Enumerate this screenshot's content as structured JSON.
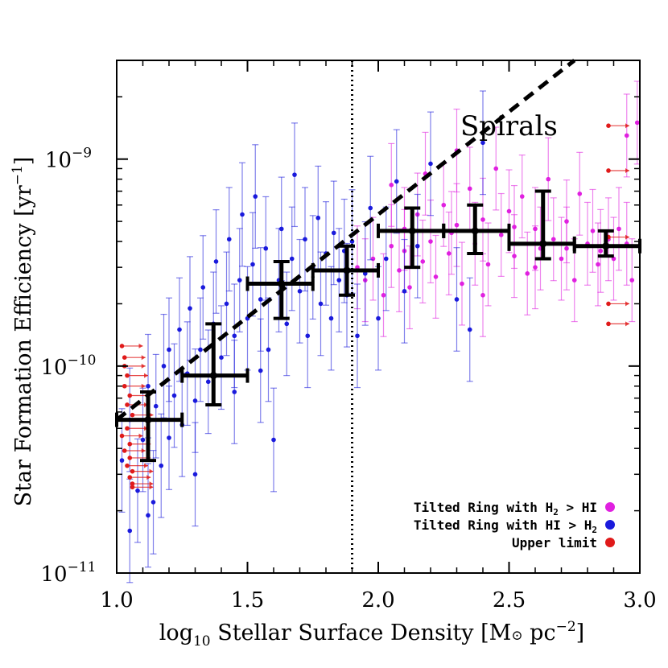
{
  "chart_data": {
    "type": "scatter",
    "xlabel": "log10 Stellar Surface Density [M⊙ pc⁻²]",
    "xlabel_parts": {
      "a": "log",
      "b": "10",
      "c": " Stellar Surface Density [M",
      "d": "⊙",
      "e": " pc",
      "f": "−2",
      "g": "]"
    },
    "ylabel": "Star Formation Efficiency [yr⁻¹]",
    "ylabel_parts": {
      "a": "Star Formation Efficiency [yr",
      "b": "−1",
      "c": "]"
    },
    "xlim": [
      1.0,
      3.0
    ],
    "ylim": [
      1e-11,
      3e-09
    ],
    "yscale": "log",
    "xticks": [
      "1.0",
      "1.5",
      "2.0",
      "2.5",
      "3.0"
    ],
    "yticks": [
      {
        "value": 1e-11,
        "base": "10",
        "exp": "−11"
      },
      {
        "value": 1e-10,
        "base": "10",
        "exp": "−10"
      },
      {
        "value": 1e-09,
        "base": "10",
        "exp": "−9"
      }
    ],
    "grid": false,
    "legend_position": "bottom-right",
    "annotation": "Spirals",
    "threshold_x": 1.9,
    "series": [
      {
        "name": "Tilted Ring with H2 > HI",
        "color": "#e020e0",
        "points": [
          [
            1.92,
            3e-10
          ],
          [
            1.95,
            2.6e-10
          ],
          [
            1.98,
            3.3e-10
          ],
          [
            2.02,
            2.2e-10
          ],
          [
            2.05,
            3.8e-10
          ],
          [
            2.08,
            2.9e-10
          ],
          [
            2.1,
            4.6e-10
          ],
          [
            2.12,
            2.4e-10
          ],
          [
            2.15,
            5.4e-10
          ],
          [
            2.17,
            3.2e-10
          ],
          [
            2.2,
            4e-10
          ],
          [
            2.22,
            2.7e-10
          ],
          [
            2.25,
            6e-10
          ],
          [
            2.27,
            3.5e-10
          ],
          [
            2.3,
            4.8e-10
          ],
          [
            2.32,
            2.5e-10
          ],
          [
            2.35,
            7.2e-10
          ],
          [
            2.37,
            3.9e-10
          ],
          [
            2.4,
            5.1e-10
          ],
          [
            2.42,
            3.1e-10
          ],
          [
            2.45,
            9e-10
          ],
          [
            2.47,
            4.3e-10
          ],
          [
            2.5,
            5.6e-10
          ],
          [
            2.52,
            3.4e-10
          ],
          [
            2.55,
            6.6e-10
          ],
          [
            2.57,
            2.8e-10
          ],
          [
            2.6,
            4.6e-10
          ],
          [
            2.62,
            3.7e-10
          ],
          [
            2.65,
            8e-10
          ],
          [
            2.67,
            4.1e-10
          ],
          [
            2.7,
            3.3e-10
          ],
          [
            2.72,
            5e-10
          ],
          [
            2.75,
            2.6e-10
          ],
          [
            2.77,
            6.8e-10
          ],
          [
            2.8,
            3.9e-10
          ],
          [
            2.82,
            4.5e-10
          ],
          [
            2.85,
            3.6e-10
          ],
          [
            2.88,
            4.1e-10
          ],
          [
            2.9,
            3.3e-10
          ],
          [
            2.92,
            4.6e-10
          ],
          [
            2.95,
            3.9e-10
          ],
          [
            2.97,
            2.6e-10
          ],
          [
            2.99,
            1.5e-09
          ],
          [
            2.95,
            1.3e-09
          ],
          [
            2.3,
            1.1e-09
          ],
          [
            2.18,
            8.5e-10
          ],
          [
            2.05,
            7.5e-10
          ],
          [
            2.4,
            2.2e-10
          ],
          [
            2.6,
            3e-10
          ],
          [
            2.1,
            3.6e-10
          ],
          [
            2.28,
            4.4e-10
          ],
          [
            2.52,
            4.7e-10
          ],
          [
            2.72,
            3.7e-10
          ],
          [
            2.84,
            3.1e-10
          ]
        ],
        "err_dex": 0.2
      },
      {
        "name": "Tilted Ring with HI > H2",
        "color": "#1a1adc",
        "points": [
          [
            1.02,
            3.5e-11
          ],
          [
            1.05,
            1.6e-11
          ],
          [
            1.05,
            5.5e-11
          ],
          [
            1.08,
            2.5e-11
          ],
          [
            1.1,
            4.4e-11
          ],
          [
            1.12,
            8e-11
          ],
          [
            1.14,
            2.2e-11
          ],
          [
            1.15,
            6.4e-11
          ],
          [
            1.17,
            3.3e-11
          ],
          [
            1.18,
            1e-10
          ],
          [
            1.2,
            4.5e-11
          ],
          [
            1.22,
            7.2e-11
          ],
          [
            1.24,
            1.5e-10
          ],
          [
            1.25,
            5.2e-11
          ],
          [
            1.27,
            9.2e-11
          ],
          [
            1.28,
            1.9e-10
          ],
          [
            1.3,
            6.8e-11
          ],
          [
            1.32,
            1.2e-10
          ],
          [
            1.33,
            2.4e-10
          ],
          [
            1.35,
            8.4e-11
          ],
          [
            1.37,
            1.6e-10
          ],
          [
            1.38,
            3.2e-10
          ],
          [
            1.4,
            1.1e-10
          ],
          [
            1.42,
            2e-10
          ],
          [
            1.43,
            4.1e-10
          ],
          [
            1.45,
            1.4e-10
          ],
          [
            1.47,
            2.6e-10
          ],
          [
            1.48,
            5.4e-10
          ],
          [
            1.5,
            1.7e-10
          ],
          [
            1.52,
            3.1e-10
          ],
          [
            1.53,
            6.6e-10
          ],
          [
            1.55,
            2.1e-10
          ],
          [
            1.57,
            3.7e-10
          ],
          [
            1.58,
            1.2e-10
          ],
          [
            1.6,
            4.4e-11
          ],
          [
            1.62,
            2.6e-10
          ],
          [
            1.63,
            4.6e-10
          ],
          [
            1.65,
            1.6e-10
          ],
          [
            1.67,
            3.3e-10
          ],
          [
            1.68,
            8.4e-10
          ],
          [
            1.7,
            2.3e-10
          ],
          [
            1.72,
            4.1e-10
          ],
          [
            1.73,
            1.4e-10
          ],
          [
            1.75,
            3e-10
          ],
          [
            1.77,
            5.2e-10
          ],
          [
            1.78,
            2e-10
          ],
          [
            1.8,
            3.5e-10
          ],
          [
            1.82,
            1.7e-10
          ],
          [
            1.83,
            4.4e-10
          ],
          [
            1.85,
            2.6e-10
          ],
          [
            1.87,
            3.6e-10
          ],
          [
            1.88,
            2.2e-10
          ],
          [
            1.9,
            4e-10
          ],
          [
            1.92,
            1.4e-10
          ],
          [
            1.95,
            2.8e-10
          ],
          [
            1.97,
            5.8e-10
          ],
          [
            2.0,
            1.7e-10
          ],
          [
            2.03,
            3.3e-10
          ],
          [
            2.07,
            7.8e-10
          ],
          [
            2.1,
            2.3e-10
          ],
          [
            2.15,
            3.8e-10
          ],
          [
            2.2,
            9.5e-10
          ],
          [
            2.3,
            2.1e-10
          ],
          [
            2.35,
            1.5e-10
          ],
          [
            2.4,
            1.2e-09
          ],
          [
            1.3,
            3e-11
          ],
          [
            1.45,
            7.5e-11
          ],
          [
            1.55,
            9.5e-11
          ],
          [
            1.12,
            1.9e-11
          ],
          [
            1.2,
            1.2e-10
          ]
        ],
        "err_dex": 0.25
      },
      {
        "name": "Upper limit",
        "color": "#e01a1a",
        "points": [
          [
            1.02,
            1.25e-10
          ],
          [
            1.03,
            1e-10
          ],
          [
            1.03,
            8e-11
          ],
          [
            1.04,
            6.5e-11
          ],
          [
            1.04,
            5e-11
          ],
          [
            1.05,
            4.2e-11
          ],
          [
            1.05,
            3.6e-11
          ],
          [
            1.06,
            3.1e-11
          ],
          [
            1.06,
            2.7e-11
          ],
          [
            1.03,
            1.1e-10
          ],
          [
            1.04,
            9e-11
          ],
          [
            1.05,
            7.2e-11
          ],
          [
            1.06,
            5.8e-11
          ],
          [
            1.02,
            4.6e-11
          ],
          [
            1.03,
            3.9e-11
          ],
          [
            1.04,
            3.3e-11
          ],
          [
            1.05,
            2.9e-11
          ],
          [
            1.06,
            2.6e-11
          ],
          [
            2.88,
            1.45e-09
          ],
          [
            2.88,
            8.8e-10
          ],
          [
            2.88,
            4.2e-10
          ],
          [
            2.88,
            2e-10
          ],
          [
            2.88,
            1.6e-10
          ]
        ]
      }
    ],
    "binned": [
      {
        "x": 1.12,
        "xlo": 1.0,
        "xhi": 1.25,
        "y": 5.5e-11,
        "ylo": 3.5e-11,
        "yhi": 7.5e-11
      },
      {
        "x": 1.37,
        "xlo": 1.25,
        "xhi": 1.5,
        "y": 9e-11,
        "ylo": 6.5e-11,
        "yhi": 1.6e-10
      },
      {
        "x": 1.63,
        "xlo": 1.5,
        "xhi": 1.75,
        "y": 2.5e-10,
        "ylo": 1.7e-10,
        "yhi": 3.2e-10
      },
      {
        "x": 1.88,
        "xlo": 1.75,
        "xhi": 2.0,
        "y": 2.9e-10,
        "ylo": 2.2e-10,
        "yhi": 3.8e-10
      },
      {
        "x": 2.13,
        "xlo": 2.0,
        "xhi": 2.25,
        "y": 4.5e-10,
        "ylo": 3e-10,
        "yhi": 5.8e-10
      },
      {
        "x": 2.37,
        "xlo": 2.25,
        "xhi": 2.5,
        "y": 4.5e-10,
        "ylo": 3.5e-10,
        "yhi": 6e-10
      },
      {
        "x": 2.63,
        "xlo": 2.5,
        "xhi": 2.75,
        "y": 3.9e-10,
        "ylo": 3.3e-10,
        "yhi": 7e-10
      },
      {
        "x": 2.87,
        "xlo": 2.75,
        "xhi": 3.0,
        "y": 3.8e-10,
        "ylo": 3.4e-10,
        "yhi": 4.5e-10
      }
    ],
    "fit_line": [
      [
        1.0,
        5.5e-11
      ],
      [
        2.75,
        3e-09
      ]
    ],
    "legend": [
      {
        "label": "Tilted Ring with H",
        "sub1": "2",
        "mid": " > HI",
        "sub2": "",
        "color": "#e020e0"
      },
      {
        "label": "Tilted Ring with HI > H",
        "sub1": "2",
        "mid": "",
        "sub2": "",
        "color": "#1a1adc"
      },
      {
        "label": "Upper limit",
        "sub1": "",
        "mid": "",
        "sub2": "",
        "color": "#e01a1a"
      }
    ]
  }
}
